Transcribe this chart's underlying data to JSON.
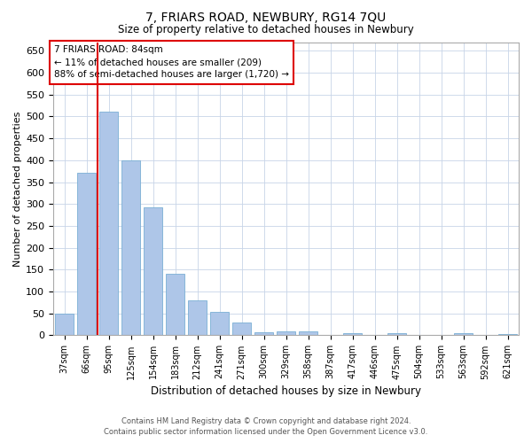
{
  "title": "7, FRIARS ROAD, NEWBURY, RG14 7QU",
  "subtitle": "Size of property relative to detached houses in Newbury",
  "xlabel": "Distribution of detached houses by size in Newbury",
  "ylabel": "Number of detached properties",
  "bar_color": "#aec6e8",
  "bar_edge_color": "#7aafd4",
  "background_color": "#ffffff",
  "grid_color": "#c8d4e8",
  "annotation_box_text": "7 FRIARS ROAD: 84sqm\n← 11% of detached houses are smaller (209)\n88% of semi-detached houses are larger (1,720) →",
  "vline_color": "#dd0000",
  "categories": [
    "37sqm",
    "66sqm",
    "95sqm",
    "125sqm",
    "154sqm",
    "183sqm",
    "212sqm",
    "241sqm",
    "271sqm",
    "300sqm",
    "329sqm",
    "358sqm",
    "387sqm",
    "417sqm",
    "446sqm",
    "475sqm",
    "504sqm",
    "533sqm",
    "563sqm",
    "592sqm",
    "621sqm"
  ],
  "values": [
    50,
    372,
    512,
    400,
    292,
    140,
    80,
    53,
    30,
    8,
    10,
    10,
    0,
    5,
    0,
    5,
    0,
    0,
    5,
    0,
    3
  ],
  "ylim": [
    0,
    670
  ],
  "yticks": [
    0,
    50,
    100,
    150,
    200,
    250,
    300,
    350,
    400,
    450,
    500,
    550,
    600,
    650
  ],
  "vline_index": 1.5,
  "footer_line1": "Contains HM Land Registry data © Crown copyright and database right 2024.",
  "footer_line2": "Contains public sector information licensed under the Open Government Licence v3.0."
}
